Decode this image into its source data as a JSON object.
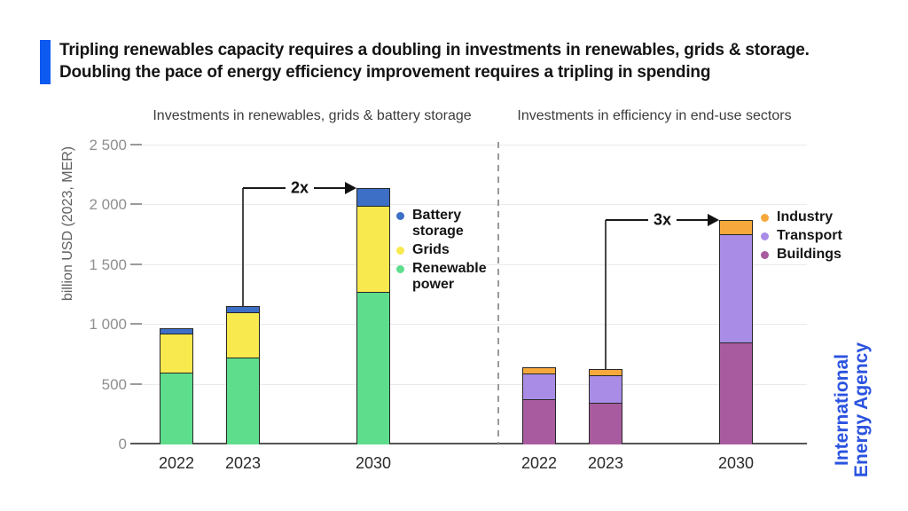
{
  "accent_color": "#0d5af0",
  "title": {
    "line1": "Tripling renewables capacity requires a doubling in investments in renewables, grids & storage.",
    "line2": "Doubling the pace of energy efficiency improvement requires a tripling in spending"
  },
  "y_axis": {
    "label": "billion USD (2023, MER)",
    "tick_labels": [
      "2 500",
      "2 000",
      "1 500",
      "1 000",
      "500",
      "0"
    ],
    "tick_values": [
      2500,
      2000,
      1500,
      1000,
      500,
      0
    ],
    "max": 2500
  },
  "branding": {
    "line1": "International",
    "line2": "Energy Agency",
    "color": "#2b53e0"
  },
  "chart_data": [
    {
      "type": "bar",
      "stacked": true,
      "title": "Investments in renewables, grids & battery storage",
      "categories": [
        "2022",
        "2023",
        "2030"
      ],
      "series": [
        {
          "name": "Battery storage",
          "color": "#3d6fc7",
          "values": [
            35,
            45,
            140
          ]
        },
        {
          "name": "Grids",
          "color": "#f8e94e",
          "values": [
            330,
            375,
            720
          ]
        },
        {
          "name": "Renewable power",
          "color": "#5edd8d",
          "values": [
            600,
            730,
            1275
          ]
        }
      ],
      "totals": [
        965,
        1150,
        2135
      ],
      "annotation": {
        "label": "2x",
        "from_category": "2023",
        "to_category": "2030"
      },
      "ylim": [
        0,
        2500
      ],
      "ylabel": "billion USD (2023, MER)",
      "legend_position": "right-of-2030-bar",
      "grid": true
    },
    {
      "type": "bar",
      "stacked": true,
      "title": "Investments in efficiency in end-use sectors",
      "categories": [
        "2022",
        "2023",
        "2030"
      ],
      "series": [
        {
          "name": "Industry",
          "color": "#f6a83c",
          "values": [
            45,
            50,
            110
          ]
        },
        {
          "name": "Transport",
          "color": "#a88ce6",
          "values": [
            215,
            230,
            905
          ]
        },
        {
          "name": "Buildings",
          "color": "#a85c9f",
          "values": [
            375,
            345,
            855
          ]
        }
      ],
      "totals": [
        635,
        625,
        1870
      ],
      "annotation": {
        "label": "3x",
        "from_category": "2023",
        "to_category": "2030"
      },
      "ylim": [
        0,
        2500
      ],
      "ylabel": "billion USD (2023, MER)",
      "legend_position": "right-of-2030-bar",
      "grid": true
    }
  ]
}
